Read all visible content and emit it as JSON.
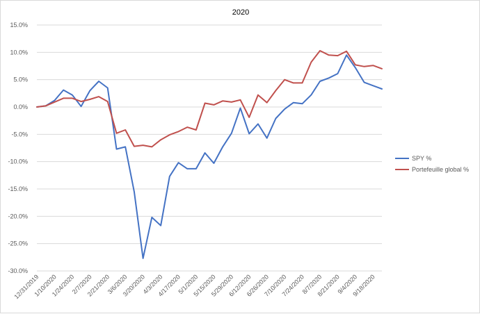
{
  "chart_data": {
    "type": "line",
    "title": "2020",
    "xlabel": "",
    "ylabel": "",
    "ylim": [
      -30,
      15
    ],
    "y_ticks": [
      "15.0%",
      "10.0%",
      "5.0%",
      "0.0%",
      "-5.0%",
      "-10.0%",
      "-15.0%",
      "-20.0%",
      "-25.0%",
      "-30.0%"
    ],
    "x_tick_labels": [
      "12/31/2019",
      "1/10/2020",
      "1/24/2020",
      "2/7/2020",
      "2/21/2020",
      "3/6/2020",
      "3/20/2020",
      "4/3/2020",
      "4/17/2020",
      "5/1/2020",
      "5/15/2020",
      "5/29/2020",
      "6/12/2020",
      "6/26/2020",
      "7/10/2020",
      "7/24/2020",
      "8/7/2020",
      "8/21/2020",
      "9/4/2020",
      "9/18/2020"
    ],
    "x_tick_positions": [
      0,
      2,
      4,
      6,
      8,
      10,
      12,
      14,
      16,
      18,
      20,
      22,
      24,
      26,
      28,
      30,
      32,
      34,
      36,
      38
    ],
    "grid": true,
    "legend_position": "right",
    "series": [
      {
        "name": "SPY %",
        "color": "#4472c4",
        "values": [
          0.0,
          0.2,
          1.2,
          3.1,
          2.2,
          0.1,
          3.0,
          4.7,
          3.5,
          -7.7,
          -7.3,
          -15.5,
          -27.7,
          -20.2,
          -21.7,
          -12.7,
          -10.2,
          -11.3,
          -11.3,
          -8.4,
          -10.3,
          -7.3,
          -4.8,
          -0.2,
          -4.9,
          -3.1,
          -5.7,
          -2.1,
          -0.4,
          0.8,
          0.6,
          2.2,
          4.7,
          5.3,
          6.1,
          9.5,
          7.2,
          4.5,
          3.9,
          3.3
        ]
      },
      {
        "name": "Portefeuille global %",
        "color": "#c0504d",
        "values": [
          0.0,
          0.2,
          0.9,
          1.6,
          1.6,
          1.0,
          1.4,
          1.9,
          1.0,
          -4.8,
          -4.2,
          -7.2,
          -7.0,
          -7.3,
          -6.0,
          -5.1,
          -4.5,
          -3.7,
          -4.2,
          0.7,
          0.4,
          1.1,
          0.9,
          1.3,
          -1.9,
          2.2,
          0.8,
          3.0,
          5.0,
          4.4,
          4.4,
          8.2,
          10.3,
          9.5,
          9.4,
          10.2,
          7.7,
          7.4,
          7.6,
          7.0
        ]
      }
    ]
  }
}
